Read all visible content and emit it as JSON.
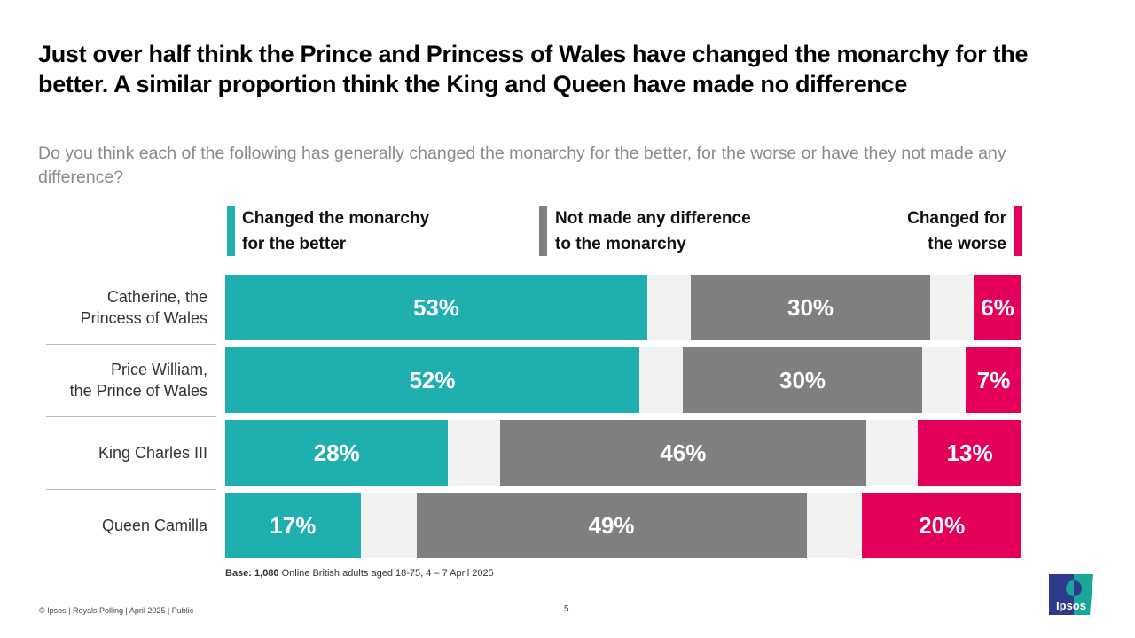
{
  "chart_data": {
    "type": "bar",
    "stacked": true,
    "orientation": "horizontal",
    "title": "Just over half think the Prince and Princess of Wales have changed the monarchy for the better. A similar proportion think the King and Queen have made no difference",
    "subtitle": "Do you think each of the following has generally changed the monarchy for the better, for the worse or have they not made any difference?",
    "categories": [
      "Catherine, the\nPrincess of Wales",
      "Price William,\nthe Prince of Wales",
      "King Charles III",
      "Queen Camilla"
    ],
    "series": [
      {
        "name": "Changed the monarchy for the better",
        "color": "#1fafaf",
        "values": [
          53,
          52,
          28,
          17
        ]
      },
      {
        "name": "Not made any difference to the monarchy",
        "color": "#7f7f7f",
        "values": [
          30,
          30,
          46,
          49
        ]
      },
      {
        "name": "Changed for the worse",
        "color": "#e4005a",
        "values": [
          6,
          7,
          13,
          20
        ]
      }
    ],
    "unit": "%",
    "xlim": [
      0,
      100
    ],
    "legend": "top"
  },
  "legend": {
    "better_l1": "Changed the monarchy",
    "better_l2": "for the better",
    "neutral_l1": "Not made any difference",
    "neutral_l2": "to the monarchy",
    "worse_l1": "Changed for",
    "worse_l2": "the worse"
  },
  "base": {
    "bold": "Base: 1,080",
    "text": " Online British adults aged 18-75, 4 – 7 April 2025"
  },
  "footer": "© Ipsos | Royals Polling | April 2025 | Public",
  "page_number": "5",
  "logo_text": "Ipsos"
}
